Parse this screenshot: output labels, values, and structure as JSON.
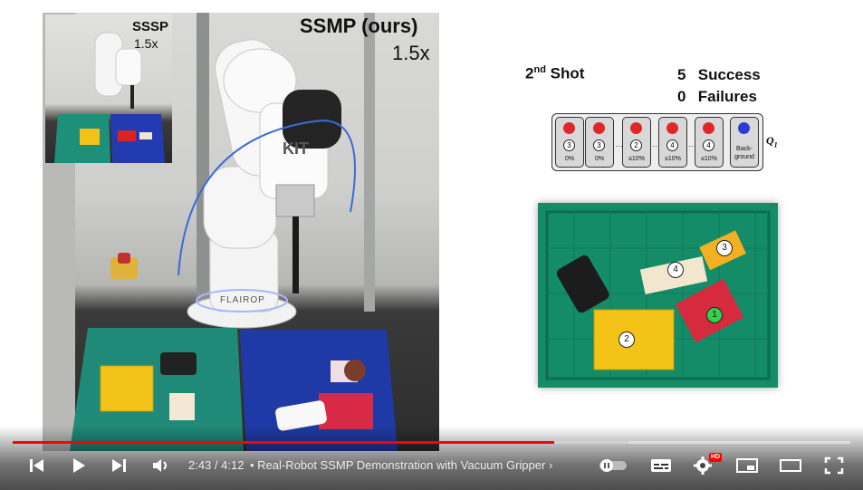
{
  "video": {
    "main_label": "SSMP (ours)",
    "main_speed": "1.5x",
    "inset_label": "SSSP",
    "inset_speed": "1.5x",
    "robot_logo": "KIT",
    "base_logo": "FLAIROP"
  },
  "diagram": {
    "shot_label": "2",
    "shot_sup": "nd",
    "shot_word": "Shot",
    "success_count": "5",
    "success_label": "Success",
    "failure_count": "0",
    "failure_label": "Failures",
    "q_label": "Q",
    "q_sub": "1",
    "cards": [
      {
        "num": "3",
        "pct": "0%",
        "color": "#e0262b"
      },
      {
        "num": "3",
        "pct": "0%",
        "color": "#e0262b"
      },
      {
        "num": "2",
        "pct": "≤10%",
        "color": "#e0262b"
      },
      {
        "num": "4",
        "pct": "≤10%",
        "color": "#e0262b"
      },
      {
        "num": "4",
        "pct": "≤10%",
        "color": "#e0262b"
      },
      {
        "num": "",
        "pct": "Back-\nground",
        "color": "#2a3fd1"
      }
    ],
    "objects": [
      {
        "num": "1"
      },
      {
        "num": "2"
      },
      {
        "num": "3"
      },
      {
        "num": "4"
      }
    ]
  },
  "controls": {
    "current_time": "2:43",
    "duration": "4:12",
    "time_sep": " / ",
    "chapter_title": "Real-Robot SSMP Demonstration with Vacuum Gripper",
    "hd_badge": "HD",
    "progress_fraction": 0.647,
    "accent": "#ff0000",
    "icons": [
      "previous-icon",
      "play-icon",
      "next-icon",
      "volume-icon",
      "autoplay-toggle-icon",
      "subtitles-icon",
      "settings-icon",
      "miniplayer-icon",
      "theater-icon",
      "fullscreen-icon"
    ]
  }
}
